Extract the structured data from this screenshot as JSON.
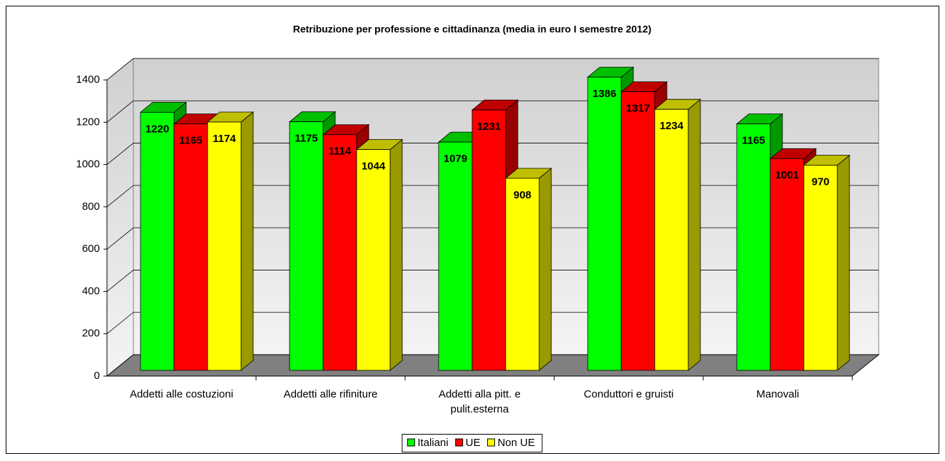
{
  "chart_data": {
    "type": "bar3d",
    "title": "Retribuzione per professione e cittadinanza (media in euro I semestre 2012)",
    "categories": [
      "Addetti alle costuzioni",
      "Addetti alle rifiniture",
      "Addetti alla pitt. e pulit.esterna",
      "Conduttori e gruisti",
      "Manovali"
    ],
    "series": [
      {
        "name": "Italiani",
        "color": "#00ff00",
        "values": [
          1220,
          1175,
          1079,
          1386,
          1165
        ]
      },
      {
        "name": "UE",
        "color": "#ff0000",
        "values": [
          1165,
          1114,
          1231,
          1317,
          1001
        ]
      },
      {
        "name": "Non UE",
        "color": "#ffff00",
        "values": [
          1174,
          1044,
          908,
          1234,
          970
        ]
      }
    ],
    "ylim": [
      0,
      1400
    ],
    "yticks": [
      0,
      200,
      400,
      600,
      800,
      1000,
      1200,
      1400
    ],
    "grid": true,
    "legend": "bottom"
  }
}
